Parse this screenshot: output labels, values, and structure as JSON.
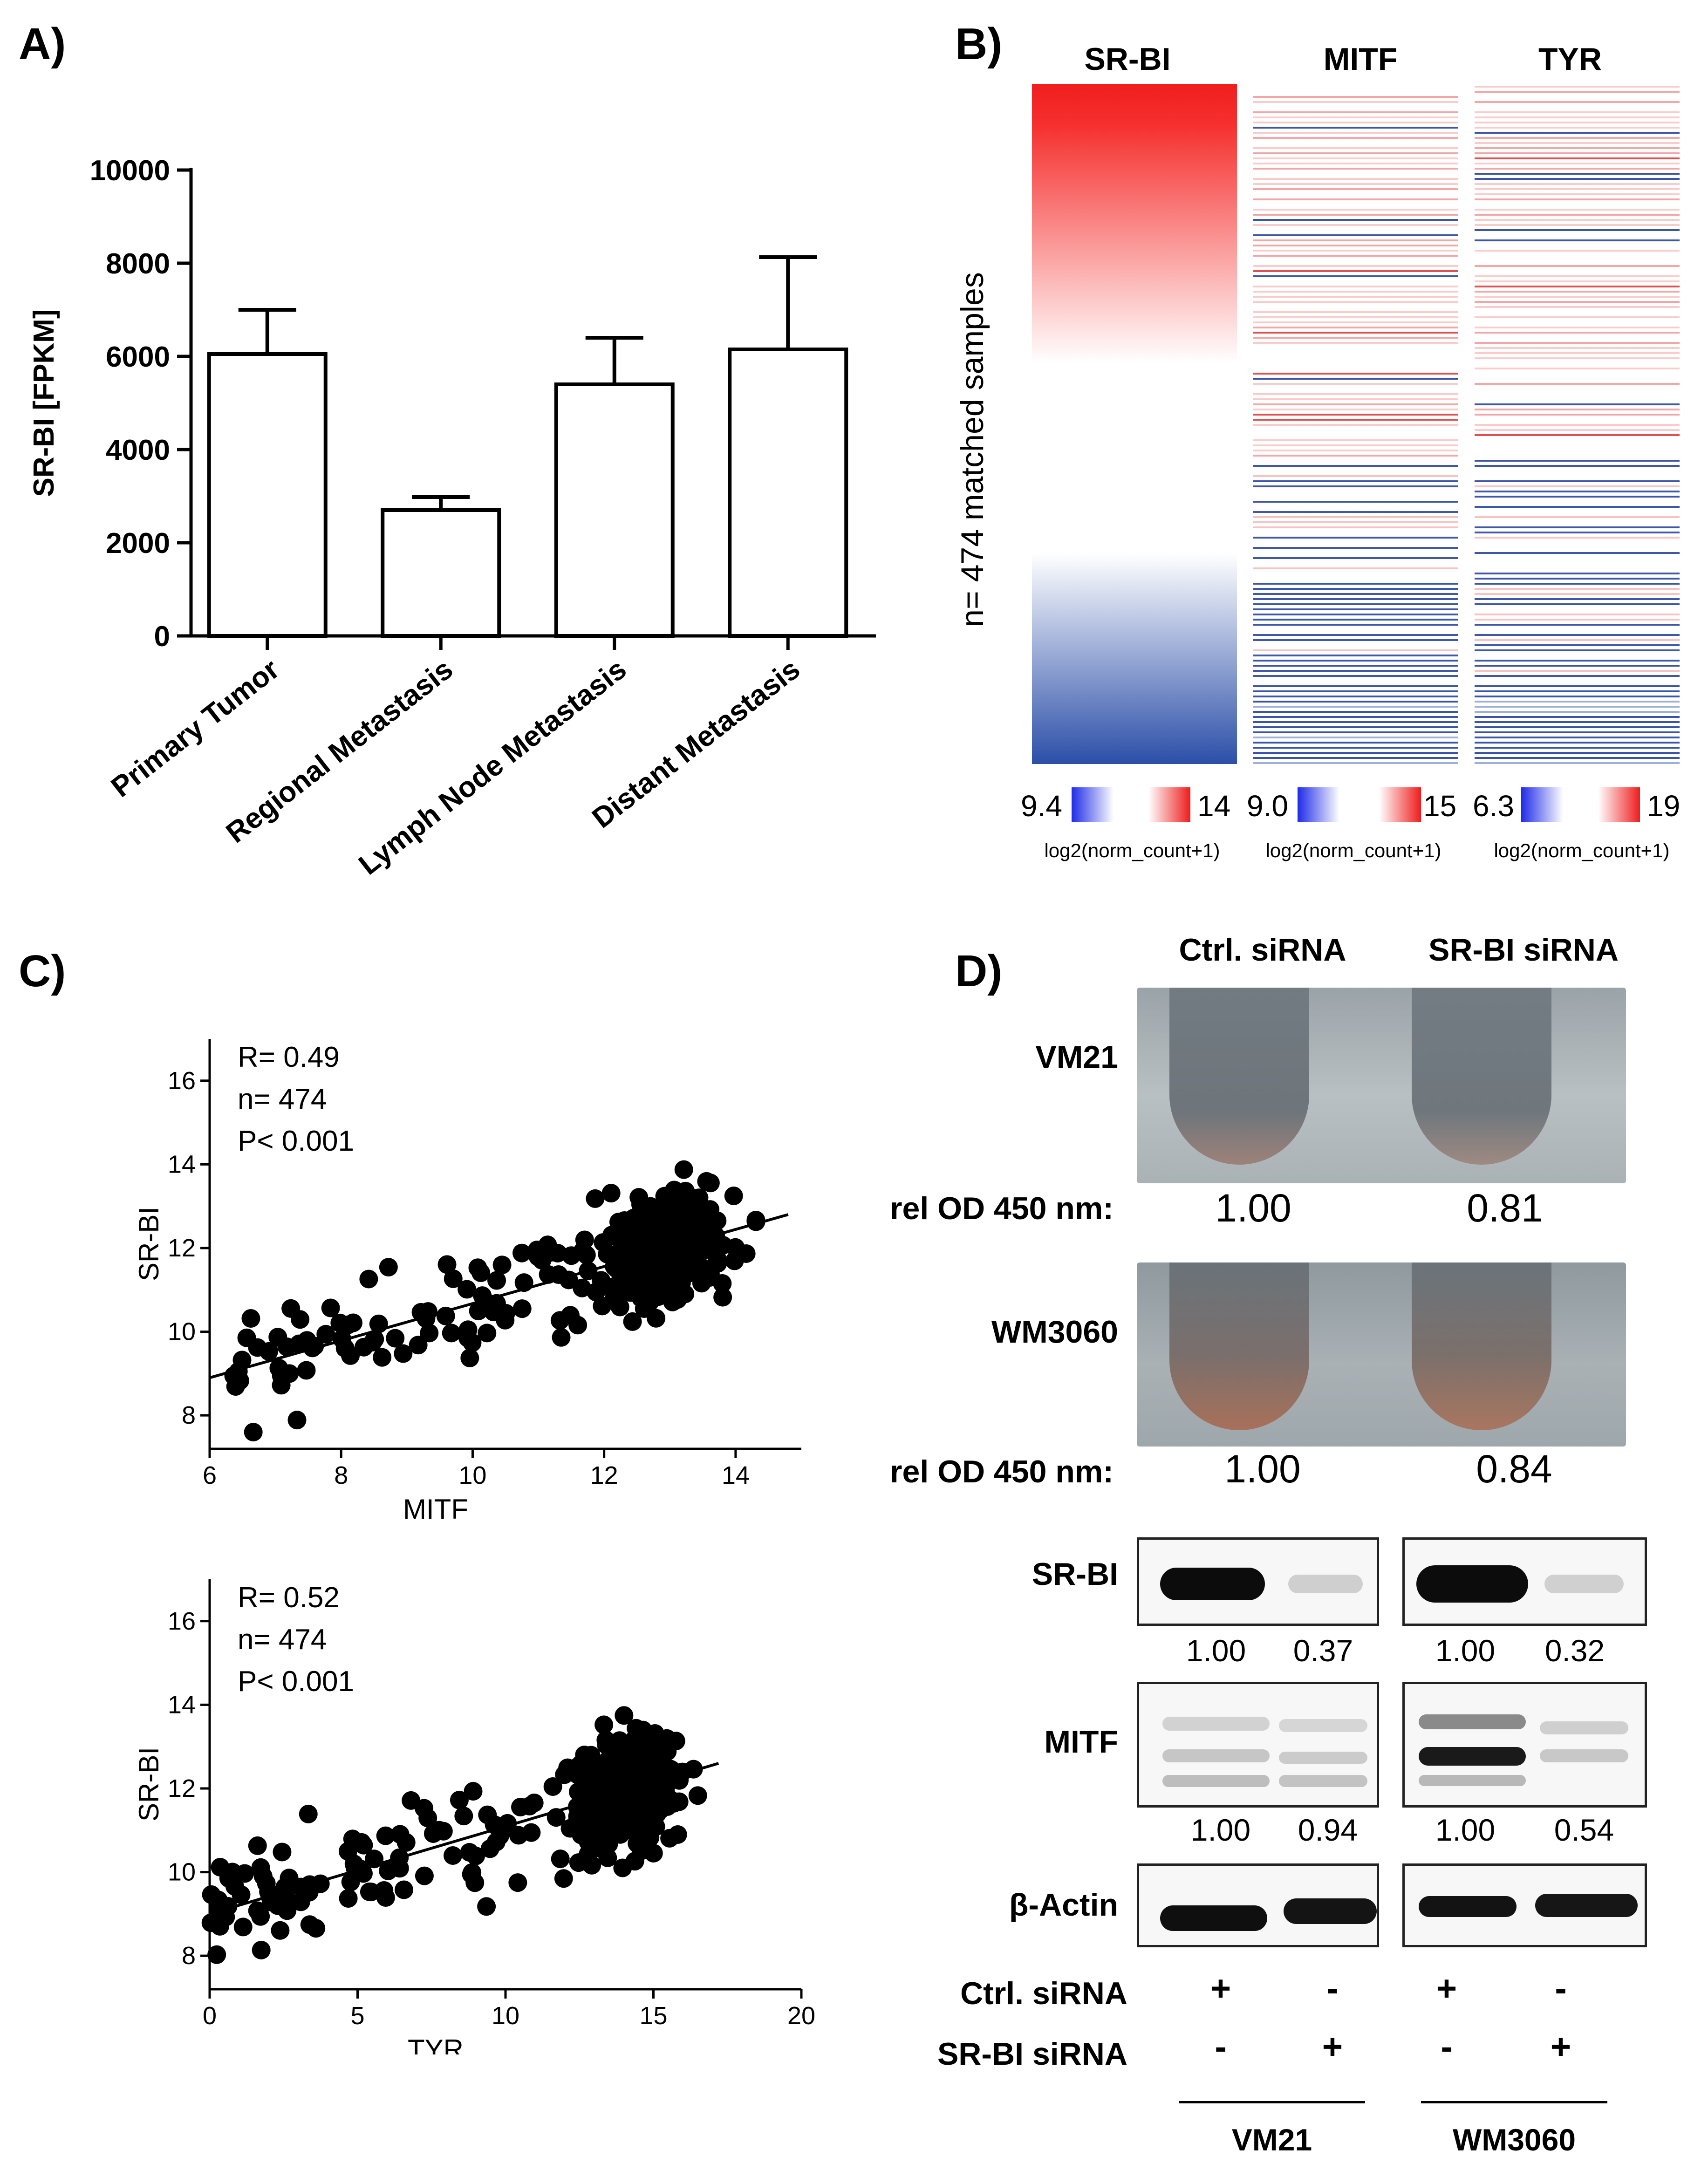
{
  "panels": {
    "a": "A)",
    "b": "B)",
    "c": "C)",
    "d": "D)"
  },
  "panelA": {
    "chart_data": {
      "type": "bar",
      "ylabel": "SR-BI [FPKM]",
      "categories": [
        "Primary Tumor",
        "Regional Metastasis",
        "Lymph Node Metastasis",
        "Distant Metastasis"
      ],
      "values": [
        6050,
        2700,
        5400,
        6150
      ],
      "errors": [
        950,
        280,
        1000,
        1980
      ],
      "ylim": [
        0,
        10000
      ],
      "yticks": [
        "0",
        "2000",
        "4000",
        "6000",
        "8000",
        "10000"
      ]
    }
  },
  "panelB": {
    "columns": [
      "SR-BI",
      "MITF",
      "TYR"
    ],
    "ylabel": "n= 474 matched samples",
    "scales": [
      {
        "min": "9.4",
        "max": "14",
        "label": "log2(norm_count+1)"
      },
      {
        "min": "9.0",
        "max": "15",
        "label": "log2(norm_count+1)"
      },
      {
        "min": "6.3",
        "max": "19",
        "label": "log2(norm_count+1)"
      }
    ],
    "colors": {
      "low": "#2b4fa8",
      "high": "#f01e1e",
      "mid": "#ffffff"
    }
  },
  "panelC": {
    "chart_data": [
      {
        "type": "scatter",
        "xlabel": "MITF",
        "ylabel": "SR-BI",
        "xlim": [
          6,
          15
        ],
        "ylim": [
          7.2,
          17
        ],
        "xticks": [
          "6",
          "8",
          "10",
          "12",
          "14"
        ],
        "yticks": [
          "8",
          "10",
          "12",
          "14",
          "16"
        ],
        "stats": [
          "R= 0.49",
          "n= 474",
          "P< 0.001"
        ],
        "fit": {
          "x1": 6,
          "y1": 8.9,
          "x2": 14.8,
          "y2": 12.8
        }
      },
      {
        "type": "scatter",
        "xlabel": "TYR",
        "ylabel": "SR-BI",
        "xlim": [
          0,
          20
        ],
        "ylim": [
          7.2,
          17
        ],
        "xticks": [
          "0",
          "5",
          "10",
          "15",
          "20"
        ],
        "yticks": [
          "8",
          "10",
          "12",
          "14",
          "16"
        ],
        "stats": [
          "R= 0.52",
          "n= 474",
          "P< 0.001"
        ],
        "fit": {
          "x1": 0,
          "y1": 9.0,
          "x2": 17.2,
          "y2": 12.6
        }
      }
    ]
  },
  "panelD": {
    "headers": [
      "Ctrl. siRNA",
      "SR-BI siRNA"
    ],
    "cell_lines": [
      "VM21",
      "WM3060"
    ],
    "od_label": "rel OD 450 nm:",
    "od_values": {
      "vm21": [
        "1.00",
        "0.81"
      ],
      "wm3060": [
        "1.00",
        "0.84"
      ]
    },
    "blots": {
      "srbi": {
        "label": "SR-BI",
        "quant": [
          "1.00",
          "0.37",
          "1.00",
          "0.32"
        ]
      },
      "mitf": {
        "label": "MITF",
        "quant": [
          "1.00",
          "0.94",
          "1.00",
          "0.54"
        ]
      },
      "actin": {
        "label": "β-Actin"
      }
    },
    "treatment": {
      "ctrl_label": "Ctrl. siRNA",
      "srbi_label": "SR-BI siRNA",
      "ctrl_signs": [
        "+",
        "-",
        "+",
        "-"
      ],
      "srbi_signs": [
        "-",
        "+",
        "-",
        "+"
      ]
    },
    "groups": [
      "VM21",
      "WM3060"
    ]
  }
}
